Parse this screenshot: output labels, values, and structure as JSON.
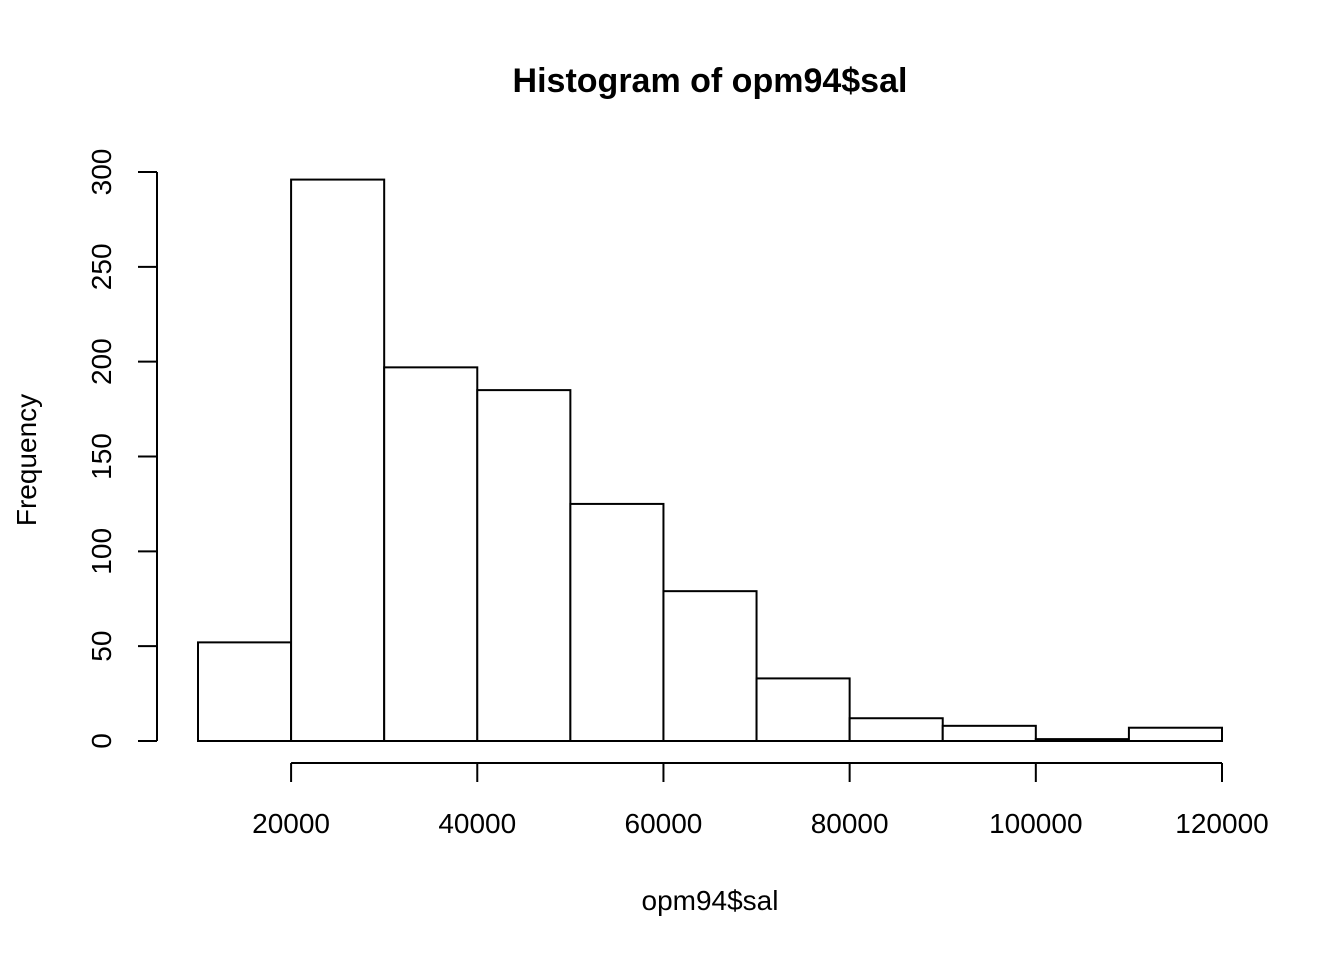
{
  "chart_data": {
    "type": "bar",
    "title": "Histogram of opm94$sal",
    "xlabel": "opm94$sal",
    "ylabel": "Frequency",
    "bins": [
      {
        "from": 10000,
        "to": 20000,
        "count": 52
      },
      {
        "from": 20000,
        "to": 30000,
        "count": 296
      },
      {
        "from": 30000,
        "to": 40000,
        "count": 197
      },
      {
        "from": 40000,
        "to": 50000,
        "count": 185
      },
      {
        "from": 50000,
        "to": 60000,
        "count": 125
      },
      {
        "from": 60000,
        "to": 70000,
        "count": 79
      },
      {
        "from": 70000,
        "to": 80000,
        "count": 33
      },
      {
        "from": 80000,
        "to": 90000,
        "count": 12
      },
      {
        "from": 90000,
        "to": 100000,
        "count": 8
      },
      {
        "from": 100000,
        "to": 110000,
        "count": 1
      },
      {
        "from": 110000,
        "to": 120000,
        "count": 7
      }
    ],
    "xlim": [
      10000,
      120000
    ],
    "ylim": [
      0,
      300
    ],
    "xticks": [
      20000,
      40000,
      60000,
      80000,
      100000,
      120000
    ],
    "xtick_labels": [
      "20000",
      "40000",
      "60000",
      "80000",
      "100000",
      "120000"
    ],
    "yticks": [
      0,
      50,
      100,
      150,
      200,
      250,
      300
    ],
    "ytick_labels": [
      "0",
      "50",
      "100",
      "150",
      "200",
      "250",
      "300"
    ],
    "grid": false
  }
}
